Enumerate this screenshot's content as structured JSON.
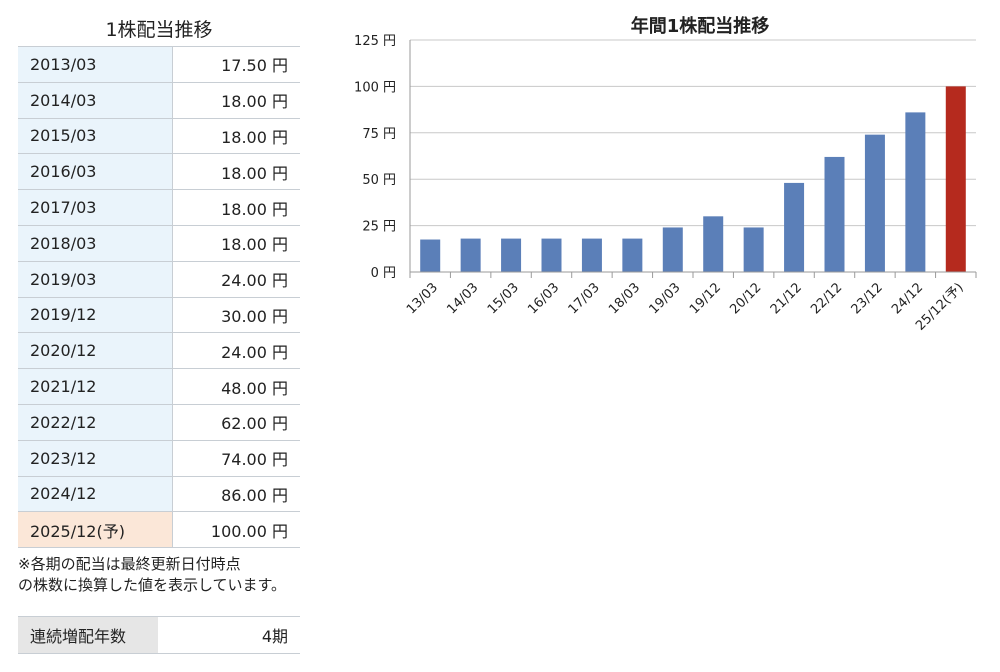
{
  "table": {
    "title": "1株配当推移",
    "rows": [
      {
        "period": "2013/03",
        "amount": "17.50 円"
      },
      {
        "period": "2014/03",
        "amount": "18.00 円"
      },
      {
        "period": "2015/03",
        "amount": "18.00 円"
      },
      {
        "period": "2016/03",
        "amount": "18.00 円"
      },
      {
        "period": "2017/03",
        "amount": "18.00 円"
      },
      {
        "period": "2018/03",
        "amount": "18.00 円"
      },
      {
        "period": "2019/03",
        "amount": "24.00 円"
      },
      {
        "period": "2019/12",
        "amount": "30.00 円"
      },
      {
        "period": "2020/12",
        "amount": "24.00 円"
      },
      {
        "period": "2021/12",
        "amount": "48.00 円"
      },
      {
        "period": "2022/12",
        "amount": "62.00 円"
      },
      {
        "period": "2023/12",
        "amount": "74.00 円"
      },
      {
        "period": "2024/12",
        "amount": "86.00 円"
      },
      {
        "period": "2025/12(予)",
        "amount": "100.00 円"
      }
    ],
    "note_line1": "※各期の配当は最終更新日付時点",
    "note_line2": "の株数に換算した値を表示しています。"
  },
  "streak": {
    "label": "連続増配年数",
    "value": "4期"
  },
  "colors": {
    "bar": "#5b7fb8",
    "bar_forecast": "#b52a1e",
    "grid": "#c8c8c8",
    "period_cell": "#eaf4fb",
    "forecast_cell": "#fbe7d8",
    "streak_label_cell": "#e6e6e6"
  },
  "chart_data": {
    "type": "bar",
    "title": "年間1株配当推移",
    "categories": [
      "13/03",
      "14/03",
      "15/03",
      "16/03",
      "17/03",
      "18/03",
      "19/03",
      "19/12",
      "20/12",
      "21/12",
      "22/12",
      "23/12",
      "24/12",
      "25/12(予)"
    ],
    "values": [
      17.5,
      18,
      18,
      18,
      18,
      18,
      24,
      30,
      24,
      48,
      62,
      74,
      86,
      100
    ],
    "forecast_index": 13,
    "ylim": [
      0,
      125
    ],
    "yticks": [
      0,
      25,
      50,
      75,
      100,
      125
    ],
    "ytick_labels": [
      "0 円",
      "25 円",
      "50 円",
      "75 円",
      "100 円",
      "125 円"
    ],
    "grid": true,
    "legend": "none",
    "xlabel": "",
    "ylabel": ""
  }
}
